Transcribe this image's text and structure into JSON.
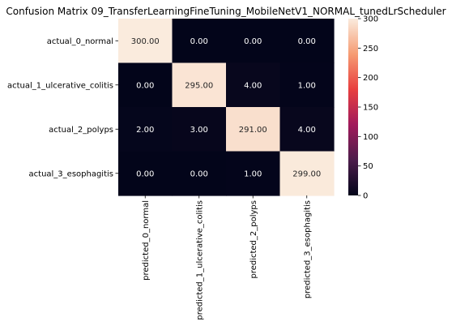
{
  "chart_data": {
    "type": "heatmap",
    "title": "Confusion Matrix 09_TransferLearningFineTuning_MobileNetV1_NORMAL_tunedLrScheduler",
    "row_labels": [
      "actual_0_normal",
      "actual_1_ulcerative_colitis",
      "actual_2_polyps",
      "actual_3_esophagitis"
    ],
    "col_labels": [
      "predicted_0_normal",
      "predicted_1_ulcerative_colitis",
      "predicted_2_polyps",
      "predicted_3_esophagitis"
    ],
    "values": [
      [
        300,
        0,
        0,
        0
      ],
      [
        0,
        295,
        4,
        1
      ],
      [
        2,
        3,
        291,
        4
      ],
      [
        0,
        0,
        1,
        299
      ]
    ],
    "cell_text": [
      [
        "300.00",
        "0.00",
        "0.00",
        "0.00"
      ],
      [
        "0.00",
        "295.00",
        "4.00",
        "1.00"
      ],
      [
        "2.00",
        "3.00",
        "291.00",
        "4.00"
      ],
      [
        "0.00",
        "0.00",
        "1.00",
        "299.00"
      ]
    ],
    "colorbar": {
      "range": [
        0,
        300
      ],
      "ticks": [
        "0",
        "50",
        "100",
        "150",
        "200",
        "250",
        "300"
      ],
      "colormap": "rocket",
      "stops": [
        "#03051a",
        "#4c1d4b",
        "#a11a5b",
        "#e83f3f",
        "#f69c73",
        "#faebdd"
      ]
    }
  }
}
